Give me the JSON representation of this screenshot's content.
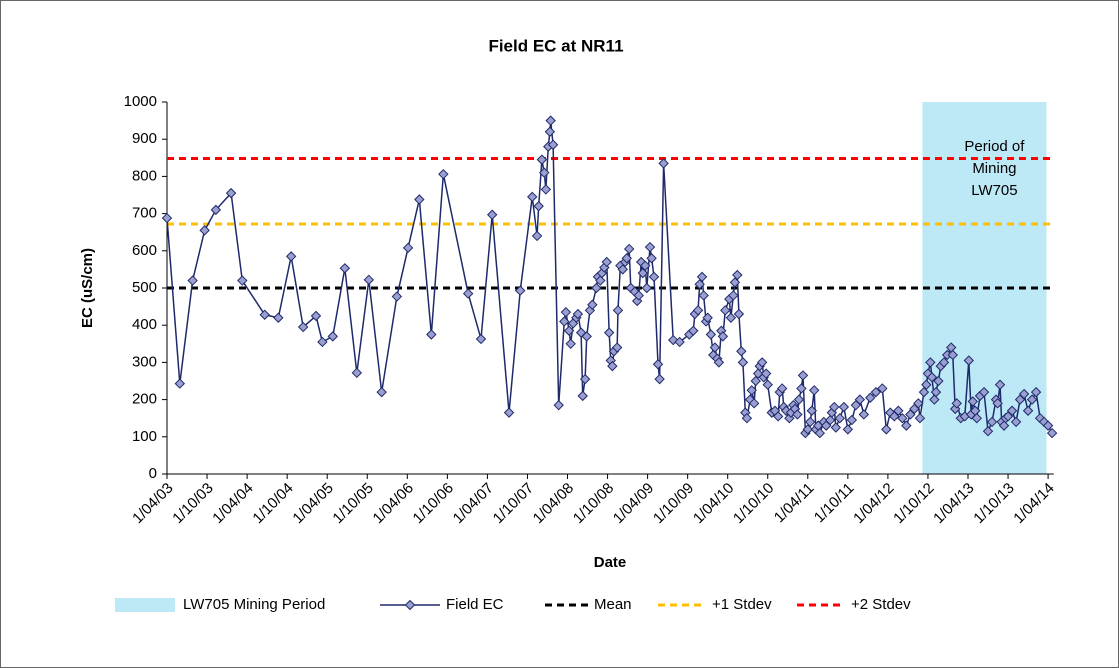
{
  "chart_data": {
    "type": "line",
    "title": "Field EC at NR11",
    "x_label": "Date",
    "y_label": "EC (uS/cm)",
    "xlim": [
      2003.25,
      2014.32
    ],
    "ylim": [
      0,
      1000
    ],
    "yticks": [
      0,
      100,
      200,
      300,
      400,
      500,
      600,
      700,
      800,
      900,
      1000
    ],
    "xticks": [
      {
        "value": 2003.25,
        "label": "1/04/03"
      },
      {
        "value": 2003.75,
        "label": "1/10/03"
      },
      {
        "value": 2004.25,
        "label": "1/04/04"
      },
      {
        "value": 2004.75,
        "label": "1/10/04"
      },
      {
        "value": 2005.25,
        "label": "1/04/05"
      },
      {
        "value": 2005.75,
        "label": "1/10/05"
      },
      {
        "value": 2006.25,
        "label": "1/04/06"
      },
      {
        "value": 2006.75,
        "label": "1/10/06"
      },
      {
        "value": 2007.25,
        "label": "1/04/07"
      },
      {
        "value": 2007.75,
        "label": "1/10/07"
      },
      {
        "value": 2008.25,
        "label": "1/04/08"
      },
      {
        "value": 2008.75,
        "label": "1/10/08"
      },
      {
        "value": 2009.25,
        "label": "1/04/09"
      },
      {
        "value": 2009.75,
        "label": "1/10/09"
      },
      {
        "value": 2010.25,
        "label": "1/04/10"
      },
      {
        "value": 2010.75,
        "label": "1/10/10"
      },
      {
        "value": 2011.25,
        "label": "1/04/11"
      },
      {
        "value": 2011.75,
        "label": "1/10/11"
      },
      {
        "value": 2012.25,
        "label": "1/04/12"
      },
      {
        "value": 2012.75,
        "label": "1/10/12"
      },
      {
        "value": 2013.25,
        "label": "1/04/13"
      },
      {
        "value": 2013.75,
        "label": "1/10/13"
      },
      {
        "value": 2014.25,
        "label": "1/04/14"
      }
    ],
    "grid": false,
    "shade": {
      "name": "LW705 Mining Period",
      "color": "#bde9f7",
      "x": [
        2012.68,
        2014.23
      ],
      "label_lines": [
        "Period of",
        "Mining",
        "LW705"
      ]
    },
    "series": [
      {
        "name": "Field EC",
        "color": "#1f2a6b",
        "marker_color": "#9a9fd0",
        "x": [
          2003.25,
          2003.41,
          2003.57,
          2003.72,
          2003.86,
          2004.05,
          2004.19,
          2004.47,
          2004.64,
          2004.8,
          2004.95,
          2005.11,
          2005.19,
          2005.32,
          2005.47,
          2005.62,
          2005.77,
          2005.93,
          2006.12,
          2006.26,
          2006.4,
          2006.55,
          2006.7,
          2007.01,
          2007.17,
          2007.31,
          2007.52,
          2007.66,
          2007.81,
          2007.87,
          2007.89,
          2007.93,
          2007.96,
          2007.98,
          2008.01,
          2008.03,
          2008.04,
          2008.07,
          2008.14,
          2008.21,
          2008.23,
          2008.27,
          2008.29,
          2008.32,
          2008.36,
          2008.38,
          2008.42,
          2008.44,
          2008.47,
          2008.49,
          2008.53,
          2008.56,
          2008.61,
          2008.63,
          2008.66,
          2008.68,
          2008.71,
          2008.74,
          2008.77,
          2008.79,
          2008.81,
          2008.83,
          2008.87,
          2008.88,
          2008.91,
          2008.94,
          2008.97,
          2008.99,
          2009.02,
          2009.04,
          2009.09,
          2009.12,
          2009.14,
          2009.17,
          2009.19,
          2009.22,
          2009.24,
          2009.28,
          2009.3,
          2009.33,
          2009.38,
          2009.4,
          2009.45,
          2009.57,
          2009.65,
          2009.77,
          2009.82,
          2009.84,
          2009.88,
          2009.9,
          2009.93,
          2009.95,
          2009.98,
          2010.0,
          2010.04,
          2010.07,
          2010.09,
          2010.12,
          2010.14,
          2010.17,
          2010.19,
          2010.22,
          2010.27,
          2010.29,
          2010.32,
          2010.34,
          2010.37,
          2010.39,
          2010.42,
          2010.44,
          2010.47,
          2010.49,
          2010.53,
          2010.55,
          2010.58,
          2010.6,
          2010.63,
          2010.65,
          2010.68,
          2010.7,
          2010.73,
          2010.75,
          2010.8,
          2010.84,
          2010.88,
          2010.9,
          2010.93,
          2010.95,
          2010.98,
          2011.02,
          2011.04,
          2011.07,
          2011.09,
          2011.12,
          2011.14,
          2011.17,
          2011.19,
          2011.22,
          2011.25,
          2011.28,
          2011.3,
          2011.33,
          2011.35,
          2011.38,
          2011.4,
          2011.45,
          2011.48,
          2011.53,
          2011.55,
          2011.58,
          2011.6,
          2011.65,
          2011.7,
          2011.75,
          2011.8,
          2011.85,
          2011.9,
          2011.95,
          2012.03,
          2012.1,
          2012.18,
          2012.23,
          2012.28,
          2012.33,
          2012.38,
          2012.43,
          2012.48,
          2012.53,
          2012.58,
          2012.63,
          2012.65,
          2012.7,
          2012.73,
          2012.75,
          2012.78,
          2012.8,
          2012.83,
          2012.85,
          2012.88,
          2012.91,
          2012.95,
          2012.99,
          2013.04,
          2013.06,
          2013.09,
          2013.11,
          2013.16,
          2013.21,
          2013.26,
          2013.29,
          2013.31,
          2013.34,
          2013.36,
          2013.4,
          2013.45,
          2013.5,
          2013.55,
          2013.6,
          2013.62,
          2013.65,
          2013.67,
          2013.7,
          2013.72,
          2013.75,
          2013.8,
          2013.85,
          2013.9,
          2013.95,
          2014.0,
          2014.05,
          2014.1,
          2014.15,
          2014.2,
          2014.25,
          2014.3
        ],
        "values": [
          688,
          243,
          520,
          655,
          710,
          755,
          520,
          428,
          420,
          585,
          395,
          425,
          355,
          370,
          553,
          272,
          522,
          220,
          477,
          608,
          738,
          375,
          806,
          485,
          363,
          697,
          165,
          493,
          745,
          640,
          720,
          845,
          810,
          765,
          880,
          920,
          950,
          885,
          185,
          410,
          435,
          385,
          350,
          405,
          420,
          430,
          380,
          210,
          255,
          370,
          440,
          455,
          500,
          530,
          520,
          540,
          555,
          570,
          380,
          305,
          290,
          330,
          340,
          440,
          560,
          550,
          570,
          580,
          605,
          500,
          490,
          465,
          480,
          570,
          540,
          560,
          500,
          610,
          580,
          530,
          295,
          255,
          835,
          360,
          355,
          375,
          385,
          430,
          440,
          510,
          530,
          480,
          410,
          420,
          375,
          320,
          340,
          310,
          300,
          385,
          370,
          440,
          470,
          420,
          480,
          515,
          535,
          430,
          330,
          300,
          165,
          150,
          200,
          225,
          190,
          250,
          270,
          290,
          300,
          260,
          270,
          240,
          165,
          170,
          155,
          220,
          230,
          180,
          170,
          150,
          165,
          185,
          175,
          160,
          200,
          230,
          265,
          110,
          120,
          140,
          170,
          225,
          120,
          130,
          110,
          140,
          130,
          145,
          165,
          180,
          125,
          150,
          180,
          120,
          145,
          185,
          200,
          160,
          205,
          220,
          230,
          120,
          165,
          155,
          170,
          150,
          130,
          160,
          175,
          190,
          150,
          220,
          240,
          270,
          300,
          260,
          200,
          220,
          250,
          290,
          300,
          320,
          340,
          320,
          175,
          190,
          150,
          155,
          305,
          160,
          195,
          170,
          150,
          210,
          220,
          115,
          140,
          200,
          190,
          240,
          140,
          130,
          150,
          155,
          170,
          140,
          200,
          215,
          170,
          200,
          220,
          150,
          140,
          130,
          110
        ]
      }
    ],
    "reference_lines": [
      {
        "name": "Mean",
        "color": "#000000",
        "value": 500
      },
      {
        "name": "+1 Stdev",
        "color": "#ffc000",
        "value": 672
      },
      {
        "name": "+2 Stdev",
        "color": "#ff0000",
        "value": 848
      }
    ]
  }
}
